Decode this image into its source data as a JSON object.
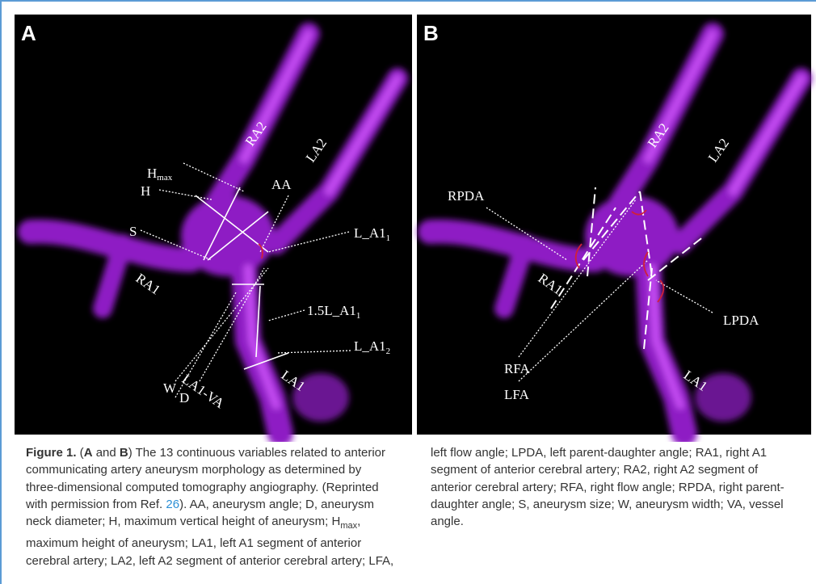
{
  "panels": [
    {
      "letter": "A",
      "labels": {
        "hmax": {
          "text": "H",
          "sub": "max"
        },
        "h": "H",
        "s": "S",
        "aa": "AA",
        "la1_1": {
          "text": "L_A1",
          "sub": "1"
        },
        "w": "W",
        "d": "D",
        "la1_15": {
          "text": "1.5L_A1",
          "sub": "1"
        },
        "la1_2": {
          "text": "L_A1",
          "sub": "2"
        },
        "la1va": "LA1-VA",
        "ra2": "RA2",
        "la2": "LA2",
        "ra1": "RA1",
        "la1": "LA1"
      }
    },
    {
      "letter": "B",
      "labels": {
        "rpda": "RPDA",
        "ra2": "RA2",
        "la2": "LA2",
        "ra1": "RA1",
        "rfa": "RFA",
        "lfa": "LFA",
        "lpda": "LPDA",
        "la1": "LA1"
      }
    }
  ],
  "caption": [
    {
      "text": "Figure 1.",
      "bold": true
    },
    {
      "text": " ("
    },
    {
      "text": "A",
      "bold": true
    },
    {
      "text": " and "
    },
    {
      "text": "B",
      "bold": true
    },
    {
      "text": ") The 13 continuous variables related to anterior communicating artery aneurysm morphology as determined by three-dimensional computed tomography angiography. (Reprinted with permission from Ref. "
    },
    {
      "text": "26",
      "link": true
    },
    {
      "text": "). AA, aneurysm angle; D, aneurysm neck diameter; H, maximum vertical height of aneurysm; H"
    },
    {
      "text": "max",
      "sub": true
    },
    {
      "text": ", maximum height of aneurysm; LA1, left A1 segment of anterior cerebral artery; LA2, left A2 segment of anterior cerebral artery; LFA, left flow angle; LPDA, left parent-daughter angle; RA1, right A1 segment of anterior cerebral artery; RA2, right A2 segment of anterior cerebral artery; RFA, right flow angle; RPDA, right parent-daughter angle; S, aneurysm size; W, aneurysm width; VA, vessel angle."
    }
  ]
}
